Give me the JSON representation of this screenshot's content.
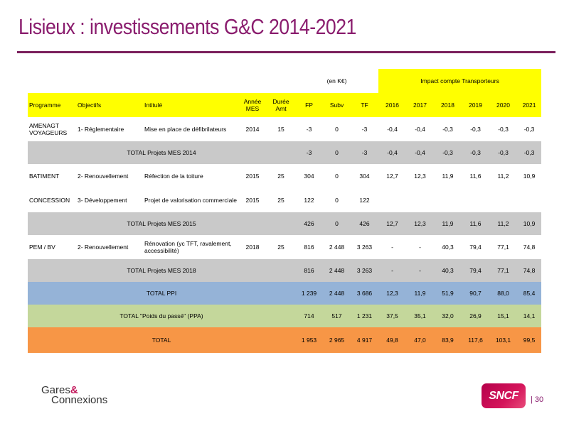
{
  "slide": {
    "title": "Lisieux : investissements G&C 2014-2021",
    "page_number": "| 30"
  },
  "table": {
    "unit_label": "(en K€)",
    "impact_label": "Impact compte Transporteurs",
    "headers": {
      "programme": "Programme",
      "objectifs": "Objectifs",
      "intitule": "Intitulé",
      "annee_mes": "Année MES",
      "duree_amt": "Durée Amt",
      "fp": "FP",
      "subv": "Subv",
      "tf": "TF",
      "years": [
        "2016",
        "2017",
        "2018",
        "2019",
        "2020",
        "2021"
      ]
    },
    "rows": {
      "amenagt": {
        "programme": "AMENAGT VOYAGEURS",
        "objectifs": "1- Réglementaire",
        "intitule": "Mise en place de défibrilateurs",
        "annee": "2014",
        "duree": "15",
        "fp": "-3",
        "subv": "0",
        "tf": "-3",
        "impact": [
          "-0,4",
          "-0,4",
          "-0,3",
          "-0,3",
          "-0,3",
          "-0,3"
        ]
      },
      "total_2014": {
        "label": "TOTAL Projets MES 2014",
        "fp": "-3",
        "subv": "0",
        "tf": "-3",
        "impact": [
          "-0,4",
          "-0,4",
          "-0,3",
          "-0,3",
          "-0,3",
          "-0,3"
        ]
      },
      "batiment": {
        "programme": "BATIMENT",
        "objectifs": "2- Renouvellement",
        "intitule": "Réfection de la toiture",
        "annee": "2015",
        "duree": "25",
        "fp": "304",
        "subv": "0",
        "tf": "304",
        "impact": [
          "12,7",
          "12,3",
          "11,9",
          "11,6",
          "11,2",
          "10,9"
        ]
      },
      "concession": {
        "programme": "CONCESSION",
        "objectifs": "3- Développement",
        "intitule": "Projet de valorisation commerciale",
        "annee": "2015",
        "duree": "25",
        "fp": "122",
        "subv": "0",
        "tf": "122",
        "impact": [
          "",
          "",
          "",
          "",
          "",
          ""
        ]
      },
      "total_2015": {
        "label": "TOTAL Projets MES 2015",
        "fp": "426",
        "subv": "0",
        "tf": "426",
        "impact": [
          "12,7",
          "12,3",
          "11,9",
          "11,6",
          "11,2",
          "10,9"
        ]
      },
      "pem": {
        "programme": "PEM / BV",
        "objectifs": "2- Renouvellement",
        "intitule": "Rénovation (yc TFT, ravalement, accessibilité)",
        "annee": "2018",
        "duree": "25",
        "fp": "816",
        "subv": "2 448",
        "tf": "3 263",
        "impact": [
          "-",
          "-",
          "40,3",
          "79,4",
          "77,1",
          "74,8"
        ]
      },
      "total_2018": {
        "label": "TOTAL Projets MES 2018",
        "fp": "816",
        "subv": "2 448",
        "tf": "3 263",
        "impact": [
          "-",
          "-",
          "40,3",
          "79,4",
          "77,1",
          "74,8"
        ]
      },
      "total_ppi": {
        "label": "TOTAL PPI",
        "fp": "1 239",
        "subv": "2 448",
        "tf": "3 686",
        "impact": [
          "12,3",
          "11,9",
          "51,9",
          "90,7",
          "88,0",
          "85,4"
        ]
      },
      "total_ppa": {
        "label": "TOTAL \"Poids du passé\" (PPA)",
        "fp": "714",
        "subv": "517",
        "tf": "1 231",
        "impact": [
          "37,5",
          "35,1",
          "32,0",
          "26,9",
          "15,1",
          "14,1"
        ]
      },
      "total": {
        "label": "TOTAL",
        "fp": "1 953",
        "subv": "2 965",
        "tf": "4 917",
        "impact": [
          "49,8",
          "47,0",
          "83,9",
          "117,6",
          "103,1",
          "99,5"
        ]
      }
    },
    "colors": {
      "header_yellow": "#ffff00",
      "total_grey": "#c9c9c9",
      "ppi_blue": "#95b3d7",
      "ppa_green": "#c4d79b",
      "total_orange": "#f79646",
      "title_purple": "#8a1d6e"
    }
  },
  "footer": {
    "logo_gc_line1": "Gares",
    "logo_gc_amp": "&",
    "logo_gc_line2": "Connexions",
    "logo_sncf": "SNCF"
  }
}
